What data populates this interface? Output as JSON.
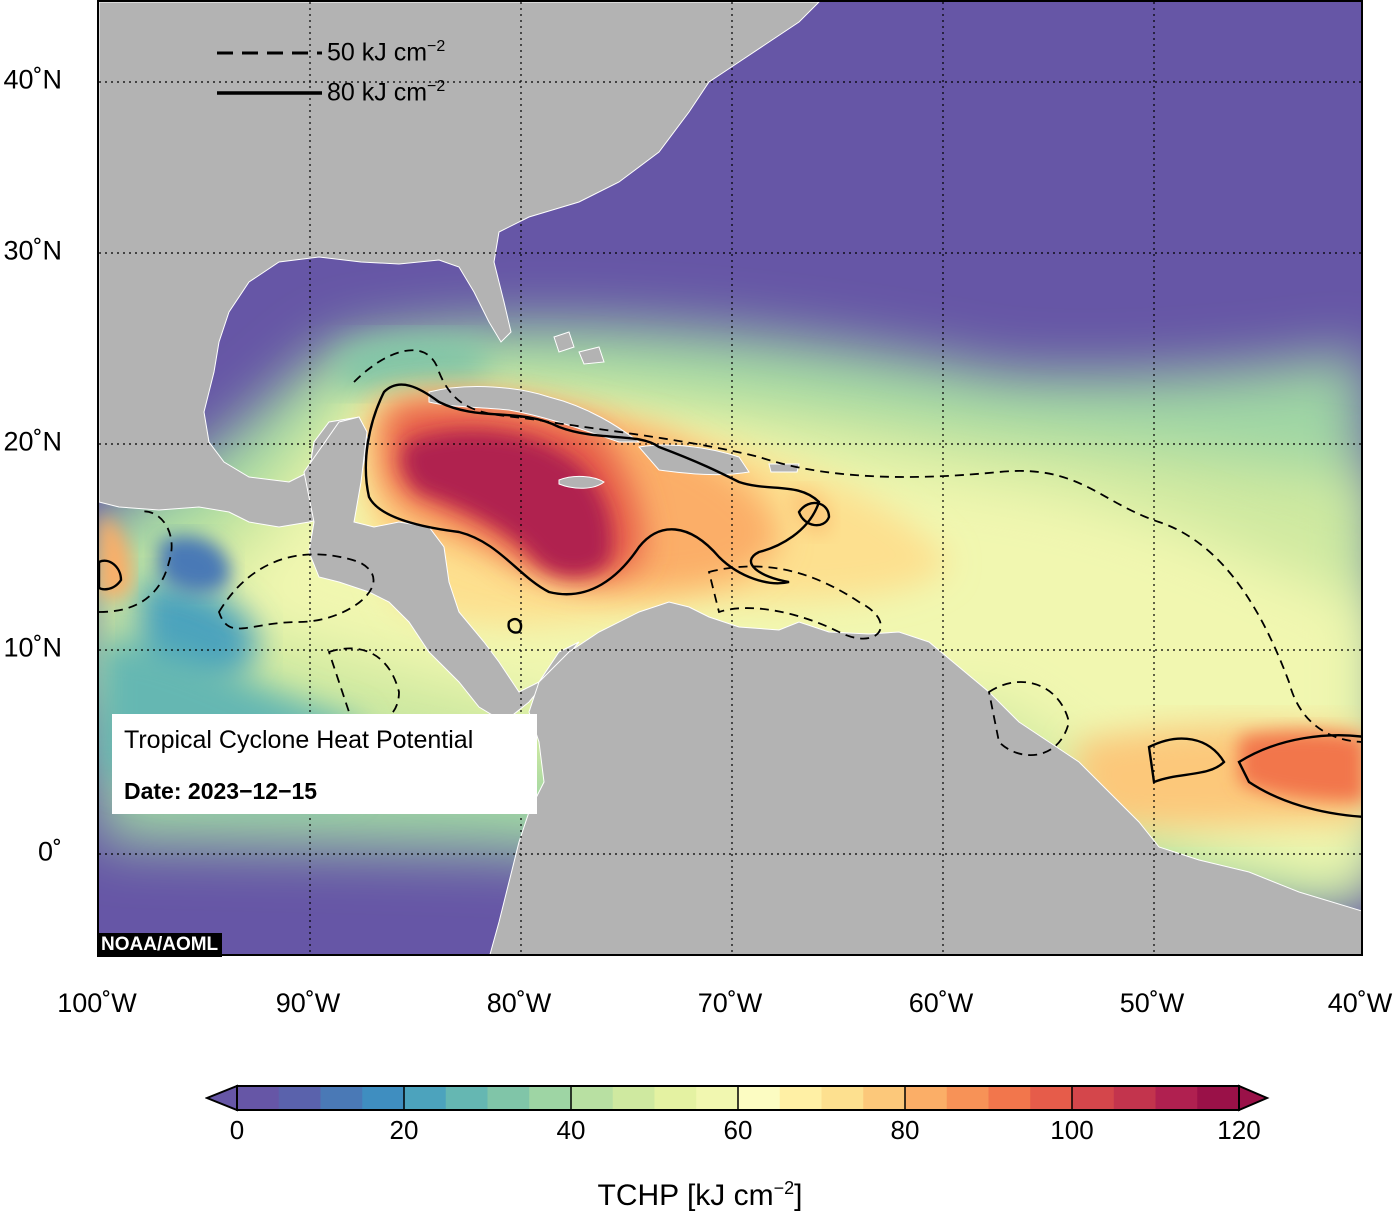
{
  "title": "Tropical Cyclone Heat Potential",
  "date_label": "Date:",
  "date_value": "2023−12−15",
  "credit": "NOAA/AOML",
  "legend": [
    {
      "style": "dashed",
      "label": "50 kJ cm",
      "sup": "−2"
    },
    {
      "style": "solid",
      "label": "80 kJ cm",
      "sup": "−2"
    }
  ],
  "lat_labels": [
    {
      "value": 40,
      "text": "40˚N"
    },
    {
      "value": 30,
      "text": "30˚N"
    },
    {
      "value": 20,
      "text": "20˚N"
    },
    {
      "value": 10,
      "text": "10˚N"
    },
    {
      "value": 0,
      "text": "0˚"
    }
  ],
  "lon_labels": [
    {
      "value": -100,
      "text": "100˚W"
    },
    {
      "value": -90,
      "text": "90˚W"
    },
    {
      "value": -80,
      "text": "80˚W"
    },
    {
      "value": -70,
      "text": "70˚W"
    },
    {
      "value": -60,
      "text": "60˚W"
    },
    {
      "value": -50,
      "text": "50˚W"
    },
    {
      "value": -40,
      "text": "40˚W"
    }
  ],
  "colorbar": {
    "title": "TCHP [kJ cm",
    "title_sup": "−2",
    "title_end": "]",
    "ticks": [
      "0",
      "20",
      "40",
      "60",
      "80",
      "100",
      "120"
    ],
    "min": 0,
    "max": 120,
    "step": 5,
    "colors": [
      "#6656a6",
      "#5a62ac",
      "#4a79b6",
      "#3f8ec0",
      "#4ca3bd",
      "#65b7b2",
      "#80c5a8",
      "#9ed5a4",
      "#b8e0a2",
      "#cfe9a0",
      "#e4f2a2",
      "#f1f7b0",
      "#fcfcc2",
      "#fff0a5",
      "#fde08f",
      "#fcc87a",
      "#fbae67",
      "#f79257",
      "#f2764c",
      "#e65c4a",
      "#d4464b",
      "#c3344d",
      "#b02050",
      "#9a1148"
    ]
  },
  "map": {
    "projection": "equirectangular",
    "lon_range": [
      -100,
      -40
    ],
    "lat_range": [
      -5,
      44
    ],
    "gridlines": "dotted",
    "ocean_color": "#6656a6",
    "land_color": "#b3b3b3",
    "contour_levels_kj_cm2": [
      50,
      80
    ]
  }
}
